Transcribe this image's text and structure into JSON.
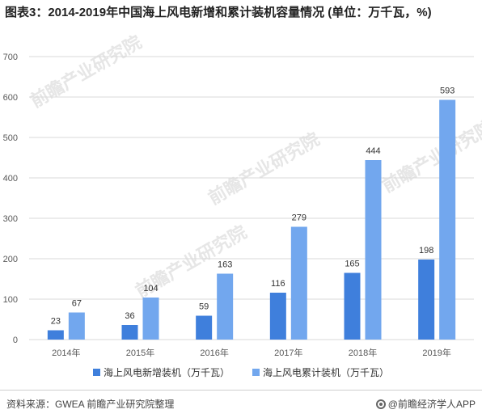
{
  "title": "图表3：2014-2019年中国海上风电新增和累计装机容量情况 (单位：万千瓦，%)",
  "footer": {
    "source": "资料来源：GWEA 前瞻产业研究院整理",
    "brand": "@前瞻经济学人APP"
  },
  "watermark": "前瞻产业研究院",
  "colors": {
    "series_new": "#3f7fdc",
    "series_cumulative": "#72a7ee",
    "grid": "#d9d9d9",
    "axis_text": "#595959"
  },
  "chart_data": {
    "type": "bar",
    "categories": [
      "2014年",
      "2015年",
      "2016年",
      "2017年",
      "2018年",
      "2019年"
    ],
    "series": [
      {
        "name": "海上风电新增装机（万千瓦）",
        "values": [
          23,
          36,
          59,
          116,
          165,
          198
        ]
      },
      {
        "name": "海上风电累计装机（万千瓦）",
        "values": [
          67,
          104,
          163,
          279,
          444,
          593
        ]
      }
    ],
    "yticks": [
      0,
      100,
      200,
      300,
      400,
      500,
      600,
      700
    ],
    "ylim": [
      0,
      700
    ],
    "xlabel": "",
    "ylabel": "",
    "grid": true,
    "legend_position": "bottom"
  }
}
